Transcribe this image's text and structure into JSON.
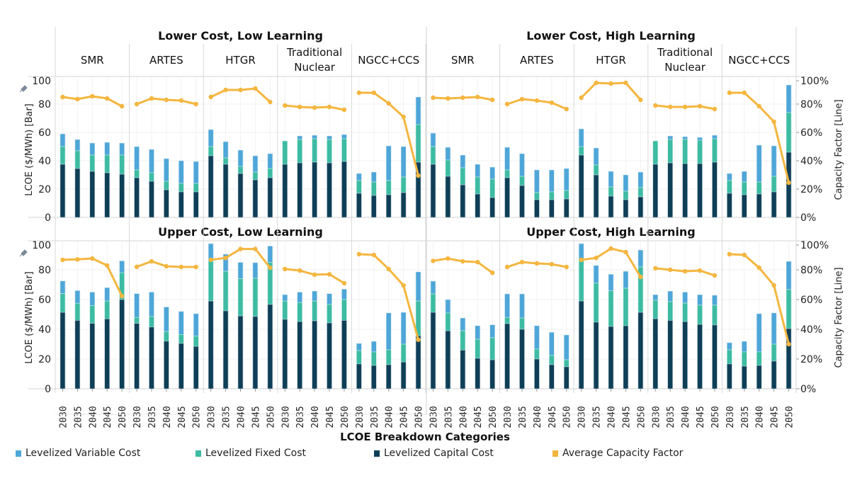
{
  "chart_data": {
    "type": "bar",
    "subtype": "stacked bar with line overlay, faceted",
    "title": "",
    "ylabel": "LCOE ($/MWh) [Bar]",
    "y2label": "Capacity Factor [Line]",
    "ylim": [
      0,
      100
    ],
    "y2lim": [
      0,
      100
    ],
    "yticks": [
      "0",
      "20",
      "40",
      "60",
      "80",
      "100"
    ],
    "y2ticks": [
      "0%",
      "20%",
      "40%",
      "60%",
      "80%",
      "100%"
    ],
    "x": [
      "2030",
      "2035",
      "2040",
      "2045",
      "2050"
    ],
    "technologies": [
      "SMR",
      "ARTES",
      "HTGR",
      "Traditional Nuclear",
      "NGCC+CCS"
    ],
    "tech_labels": [
      [
        "SMR"
      ],
      [
        "ARTES"
      ],
      [
        "HTGR"
      ],
      [
        "Traditional",
        "Nuclear"
      ],
      [
        "NGCC+CCS"
      ]
    ],
    "legend": {
      "title": "LCOE Breakdown Categories",
      "position": "bottom",
      "items": [
        {
          "name": "Levelized Variable Cost",
          "color": "#4ea6d8"
        },
        {
          "name": "Levelized Fixed Cost",
          "color": "#3dbba3"
        },
        {
          "name": "Levelized Capital Cost",
          "color": "#0f3f57"
        },
        {
          "name": "Average Capacity Factor",
          "color": "#f4b63f"
        }
      ]
    },
    "grid": true,
    "note": "Bar values are cumulative stack tops: capital, capital+fixed, total (capital+fixed+variable). Capacity factor in percent.",
    "scenarios": [
      {
        "name": "Lower Cost, Low Learning",
        "techs": [
          {
            "tech": "SMR",
            "capital": [
              37.5,
              34.5,
              32.5,
              31.5,
              30.5
            ],
            "fixed_top": [
              50,
              47,
              44,
              44,
              44
            ],
            "total": [
              59,
              55,
              52.5,
              53,
              52.5
            ],
            "capacity_factor": [
              85,
              83.5,
              85.5,
              84,
              78.5
            ]
          },
          {
            "tech": "ARTES",
            "capital": [
              28,
              25.5,
              19.5,
              18,
              18
            ],
            "fixed_top": [
              33.5,
              31.5,
              25.5,
              24,
              24
            ],
            "total": [
              50,
              48,
              41.5,
              40,
              39.5
            ],
            "capacity_factor": [
              80,
              84,
              83,
              82.5,
              80
            ]
          },
          {
            "tech": "HTGR",
            "capital": [
              43.5,
              37.5,
              31,
              26.5,
              28
            ],
            "fixed_top": [
              50,
              42,
              36,
              32,
              34.5
            ],
            "total": [
              62,
              53.5,
              47.5,
              43.5,
              45
            ],
            "capacity_factor": [
              85,
              90,
              90,
              91,
              81.5
            ]
          },
          {
            "tech": "Traditional Nuclear",
            "capital": [
              37.5,
              38.5,
              39,
              38.5,
              39.5
            ],
            "fixed_top": [
              54,
              55,
              55.5,
              55,
              55.5
            ],
            "total": [
              54,
              57.5,
              58,
              57.5,
              58.5
            ],
            "capacity_factor": [
              79,
              78,
              77.5,
              78,
              76
            ]
          },
          {
            "tech": "NGCC+CCS",
            "capital": [
              17,
              15.5,
              16,
              17.5,
              39
            ],
            "fixed_top": [
              26,
              25,
              26,
              28.5,
              65.5
            ],
            "total": [
              31,
              32,
              50.5,
              50,
              85
            ],
            "capacity_factor": [
              88,
              88,
              80.5,
              71,
              29.5
            ]
          }
        ]
      },
      {
        "name": "Lower Cost, High Learning",
        "techs": [
          {
            "tech": "SMR",
            "capital": [
              37.5,
              29,
              23,
              16.5,
              14
            ],
            "fixed_top": [
              50,
              40.5,
              35,
              28.5,
              27
            ],
            "total": [
              59.5,
              49.5,
              44,
              37.5,
              35.5
            ],
            "capacity_factor": [
              84.5,
              84,
              84.5,
              85,
              83
            ]
          },
          {
            "tech": "ARTES",
            "capital": [
              28,
              22.5,
              12.5,
              12.5,
              13
            ],
            "fixed_top": [
              33.5,
              29,
              17.5,
              18,
              19
            ],
            "total": [
              49.5,
              45,
              33.5,
              33.5,
              34.5
            ],
            "capacity_factor": [
              80,
              83.5,
              82.5,
              81,
              76.5
            ]
          },
          {
            "tech": "HTGR",
            "capital": [
              44,
              30,
              15,
              12.5,
              14.5
            ],
            "fixed_top": [
              50,
              37,
              21.5,
              18.5,
              21
            ],
            "total": [
              62.5,
              49,
              32.5,
              30,
              32
            ],
            "capacity_factor": [
              84.5,
              95,
              94.5,
              95,
              83
            ]
          },
          {
            "tech": "Traditional Nuclear",
            "capital": [
              37.5,
              38.5,
              38,
              38,
              39
            ],
            "fixed_top": [
              54,
              55,
              55,
              54.5,
              55.5
            ],
            "total": [
              54,
              57.5,
              57,
              56.5,
              58
            ],
            "capacity_factor": [
              79,
              78,
              78,
              78.5,
              76.5
            ]
          },
          {
            "tech": "NGCC+CCS",
            "capital": [
              17,
              16,
              16.5,
              18,
              46
            ],
            "fixed_top": [
              26,
              25,
              25,
              29,
              74
            ],
            "total": [
              31,
              32.5,
              51,
              50.5,
              93.5
            ],
            "capacity_factor": [
              88,
              88,
              78.5,
              67.5,
              24.5
            ]
          }
        ]
      },
      {
        "name": "Upper Cost, Low Learning",
        "techs": [
          {
            "tech": "SMR",
            "capital": [
              51.4,
              46,
              44,
              47,
              60
            ],
            "fixed_top": [
              64,
              57.5,
              56,
              59,
              78
            ],
            "total": [
              72.5,
              66,
              65,
              68,
              86
            ],
            "capacity_factor": [
              86.7,
              87,
              87.6,
              82.9,
              62.4
            ]
          },
          {
            "tech": "ARTES",
            "capital": [
              44,
              41.5,
              32,
              30.5,
              28.5
            ],
            "fixed_top": [
              48,
              48.6,
              38.5,
              36.5,
              35.5
            ],
            "total": [
              64,
              65,
              55,
              52,
              50.5
            ],
            "capacity_factor": [
              82,
              85.7,
              82.4,
              81.9,
              81.9
            ]
          },
          {
            "tech": "HTGR",
            "capital": [
              59,
              52.4,
              49,
              48.6,
              56.7
            ],
            "fixed_top": [
              86.7,
              79,
              74,
              74.3,
              85
            ],
            "total": [
              97.6,
              90.5,
              85,
              84.8,
              96
            ],
            "capacity_factor": [
              86.7,
              88,
              94,
              94,
              81.4
            ]
          },
          {
            "tech": "Traditional Nuclear",
            "capital": [
              46.7,
              45.2,
              45.7,
              44.3,
              46
            ],
            "fixed_top": [
              59,
              58,
              59,
              56.7,
              60
            ],
            "total": [
              63.3,
              65,
              65.7,
              64,
              67
            ],
            "capacity_factor": [
              80.5,
              79.5,
              76.7,
              77,
              71
            ]
          },
          {
            "tech": "NGCC+CCS",
            "capital": [
              16.7,
              15.7,
              16.2,
              18,
              35.7
            ],
            "fixed_top": [
              25.7,
              24.8,
              26.2,
              30,
              59
            ],
            "total": [
              30.5,
              31.9,
              51,
              51.4,
              78.6
            ],
            "capacity_factor": [
              90.5,
              90,
              80.5,
              69.5,
              33
            ]
          }
        ]
      },
      {
        "name": "Upper Cost, High Learning",
        "techs": [
          {
            "tech": "SMR",
            "capital": [
              51.4,
              39,
              26,
              20.5,
              19.5
            ],
            "fixed_top": [
              63.8,
              51,
              39,
              33.3,
              34.3
            ],
            "total": [
              72.4,
              60,
              47.6,
              42.4,
              43
            ],
            "capacity_factor": [
              86,
              87.6,
              85.7,
              85.2,
              78
            ]
          },
          {
            "tech": "ARTES",
            "capital": [
              43.8,
              40,
              20,
              16.2,
              14.8
            ],
            "fixed_top": [
              48,
              47.6,
              26.7,
              22.4,
              19.5
            ],
            "total": [
              63.8,
              63.8,
              42.4,
              38,
              36.2
            ],
            "capacity_factor": [
              81.9,
              85.2,
              84.3,
              83.8,
              81.9
            ]
          },
          {
            "tech": "HTGR",
            "capital": [
              59,
              44.8,
              41.9,
              42.4,
              51.4
            ],
            "fixed_top": [
              86.7,
              71,
              66,
              67.6,
              81.9
            ],
            "total": [
              97.6,
              82.9,
              77,
              79,
              93.3
            ],
            "capacity_factor": [
              86.7,
              88,
              94.3,
              91.9,
              75.2
            ]
          },
          {
            "tech": "Traditional Nuclear",
            "capital": [
              47.1,
              46,
              45.2,
              43.3,
              42.9
            ],
            "fixed_top": [
              59.5,
              58.6,
              57.6,
              56.2,
              56.2
            ],
            "total": [
              63.3,
              65.7,
              65,
              63.3,
              62.9
            ],
            "capacity_factor": [
              81,
              80,
              79,
              79.5,
              76.2
            ]
          },
          {
            "tech": "NGCC+CCS",
            "capital": [
              16.7,
              15.2,
              15.7,
              18.6,
              40.5
            ],
            "fixed_top": [
              26.2,
              24.8,
              24.8,
              30,
              66.7
            ],
            "total": [
              31,
              31.9,
              50.5,
              51,
              85.7
            ],
            "capacity_factor": [
              90.5,
              90,
              81.4,
              69.5,
              30
            ]
          }
        ]
      }
    ]
  },
  "icons": {
    "pin": "pin-icon"
  }
}
